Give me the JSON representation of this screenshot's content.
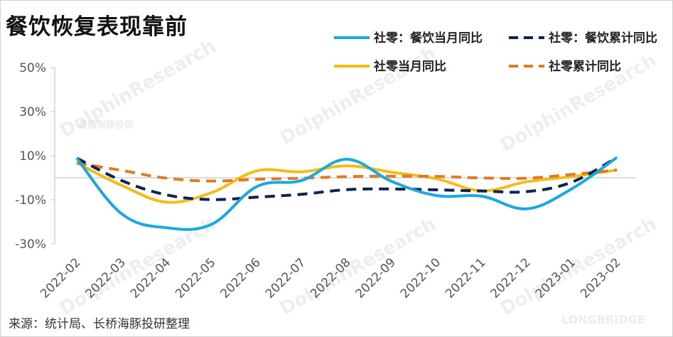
{
  "title": "餐饮恢复表现靠前",
  "source": "来源：统计局、长桥海豚投研整理",
  "watermark": {
    "brand_cn": "長橋海豚投研",
    "brand_en": "DolphinResearch",
    "brand_latin": "LONGBRIDGE"
  },
  "chart_data": {
    "type": "line",
    "title": "餐饮恢复表现靠前",
    "xlabel": "",
    "ylabel": "",
    "ylim": [
      -30,
      50
    ],
    "yticks": [
      "50%",
      "30%",
      "10%",
      "-10%",
      "-30%"
    ],
    "ytick_values": [
      50,
      30,
      10,
      -10,
      -30
    ],
    "grid": false,
    "legend_position": "top-right",
    "categories": [
      "2022-02",
      "2022-03",
      "2022-04",
      "2022-05",
      "2022-06",
      "2022-07",
      "2022-08",
      "2022-09",
      "2022-10",
      "2022-11",
      "2022-12",
      "2023-01",
      "2023-02"
    ],
    "series": [
      {
        "name": "社零：餐饮当月同比",
        "color": "#1aa8e0",
        "dash": false,
        "values": [
          8.9,
          -16.4,
          -22.7,
          -21.1,
          -4.0,
          -1.2,
          8.4,
          -1.7,
          -8.1,
          -8.4,
          -14.1,
          -5.0,
          9.2
        ]
      },
      {
        "name": "社零：餐饮累计同比",
        "color": "#0e2350",
        "dash": true,
        "values": [
          8.9,
          -1.3,
          -7.8,
          -9.9,
          -8.8,
          -7.5,
          -5.4,
          -5.1,
          -5.5,
          -6.0,
          -6.3,
          -2.0,
          9.2
        ]
      },
      {
        "name": "社零当月同比",
        "color": "#f5bc18",
        "dash": false,
        "values": [
          6.7,
          -3.5,
          -11.1,
          -6.7,
          3.1,
          2.7,
          5.4,
          2.5,
          -0.5,
          -5.9,
          -1.8,
          0.5,
          3.5
        ]
      },
      {
        "name": "社零累计同比",
        "color": "#e27a24",
        "dash": true,
        "values": [
          6.7,
          3.3,
          -0.2,
          -1.5,
          -0.7,
          -0.2,
          0.5,
          0.7,
          0.6,
          -0.1,
          -0.2,
          1.5,
          3.5
        ]
      }
    ]
  }
}
